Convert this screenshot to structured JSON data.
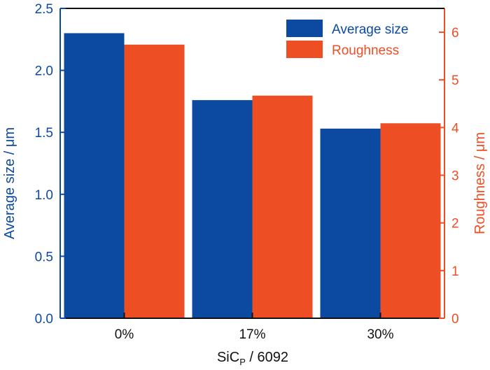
{
  "chart_data": {
    "type": "bar",
    "categories": [
      "0%",
      "17%",
      "30%"
    ],
    "xlabel": {
      "main": "SiC",
      "sub": "P",
      "rest": " / 6092"
    },
    "left_axis": {
      "label": "Average size / μm",
      "range": [
        0,
        2.5
      ],
      "ticks": [
        "0.0",
        "0.5",
        "1.0",
        "1.5",
        "2.0",
        "2.5"
      ],
      "color": "#0b4aa0"
    },
    "right_axis": {
      "label": "Roughness / μm",
      "range": [
        0,
        6.5
      ],
      "ticks": [
        "0",
        "1",
        "2",
        "3",
        "4",
        "5",
        "6"
      ],
      "color": "#ee4e24"
    },
    "series": [
      {
        "name": "Average size",
        "axis": "left",
        "color": "#0b4aa0",
        "values": [
          2.3,
          1.76,
          1.53
        ]
      },
      {
        "name": "Roughness",
        "axis": "right",
        "color": "#ee4e24",
        "values": [
          5.74,
          4.67,
          4.09
        ]
      }
    ],
    "legend_position": "top-right",
    "grid": false
  }
}
